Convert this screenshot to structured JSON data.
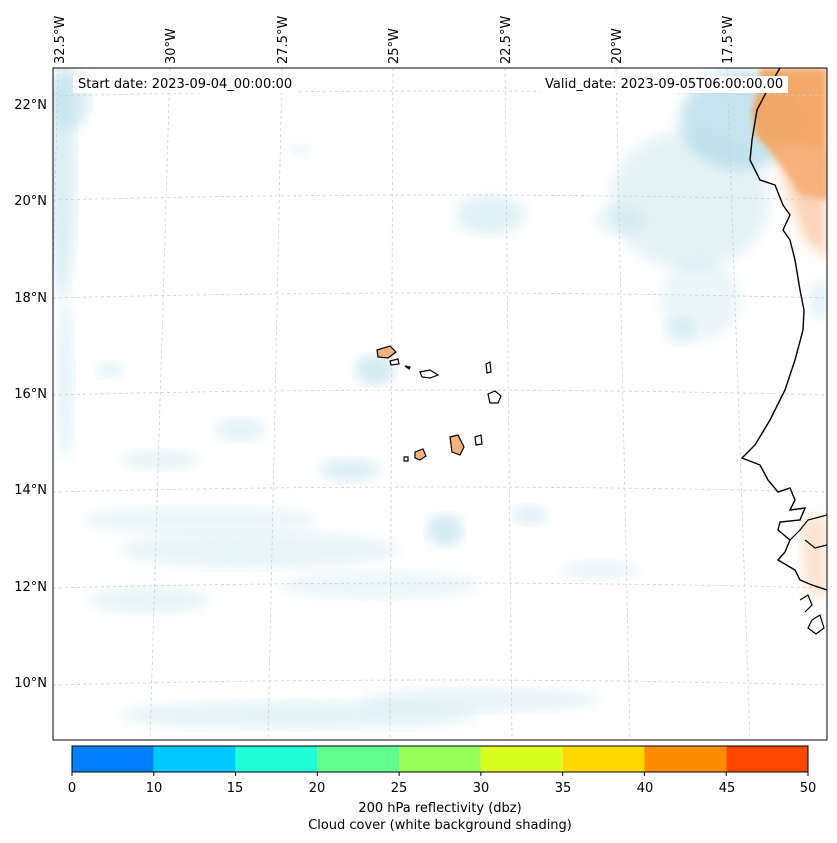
{
  "map": {
    "start_date": "Start date: 2023-09-04_00:00:00",
    "valid_date": "Valid_date: 2023-09-05T06:00:00.00",
    "lon_labels": [
      "32.5°W",
      "30°W",
      "27.5°W",
      "25°W",
      "22.5°W",
      "20°W",
      "17.5°W"
    ],
    "lat_labels": [
      "22°N",
      "20°N",
      "18°N",
      "16°N",
      "14°N",
      "12°N",
      "10°N"
    ],
    "gridlines": "dashed light gray",
    "features": [
      "Cape Verde islands",
      "West African coastline"
    ]
  },
  "colorbar": {
    "ticks": [
      "0",
      "10",
      "15",
      "20",
      "25",
      "30",
      "35",
      "40",
      "45",
      "50"
    ],
    "colors": [
      "#0080ff",
      "#00c8ff",
      "#20ffd8",
      "#60ff90",
      "#98ff58",
      "#d8ff20",
      "#ffd800",
      "#ff8c00",
      "#ff4800"
    ],
    "label_line1": "200 hPa reflectivity (dbz)",
    "label_line2": "Cloud cover (white background shading)"
  },
  "colors": {
    "cloud": "#b4dce8",
    "land_reflect": "#f5a05a"
  }
}
